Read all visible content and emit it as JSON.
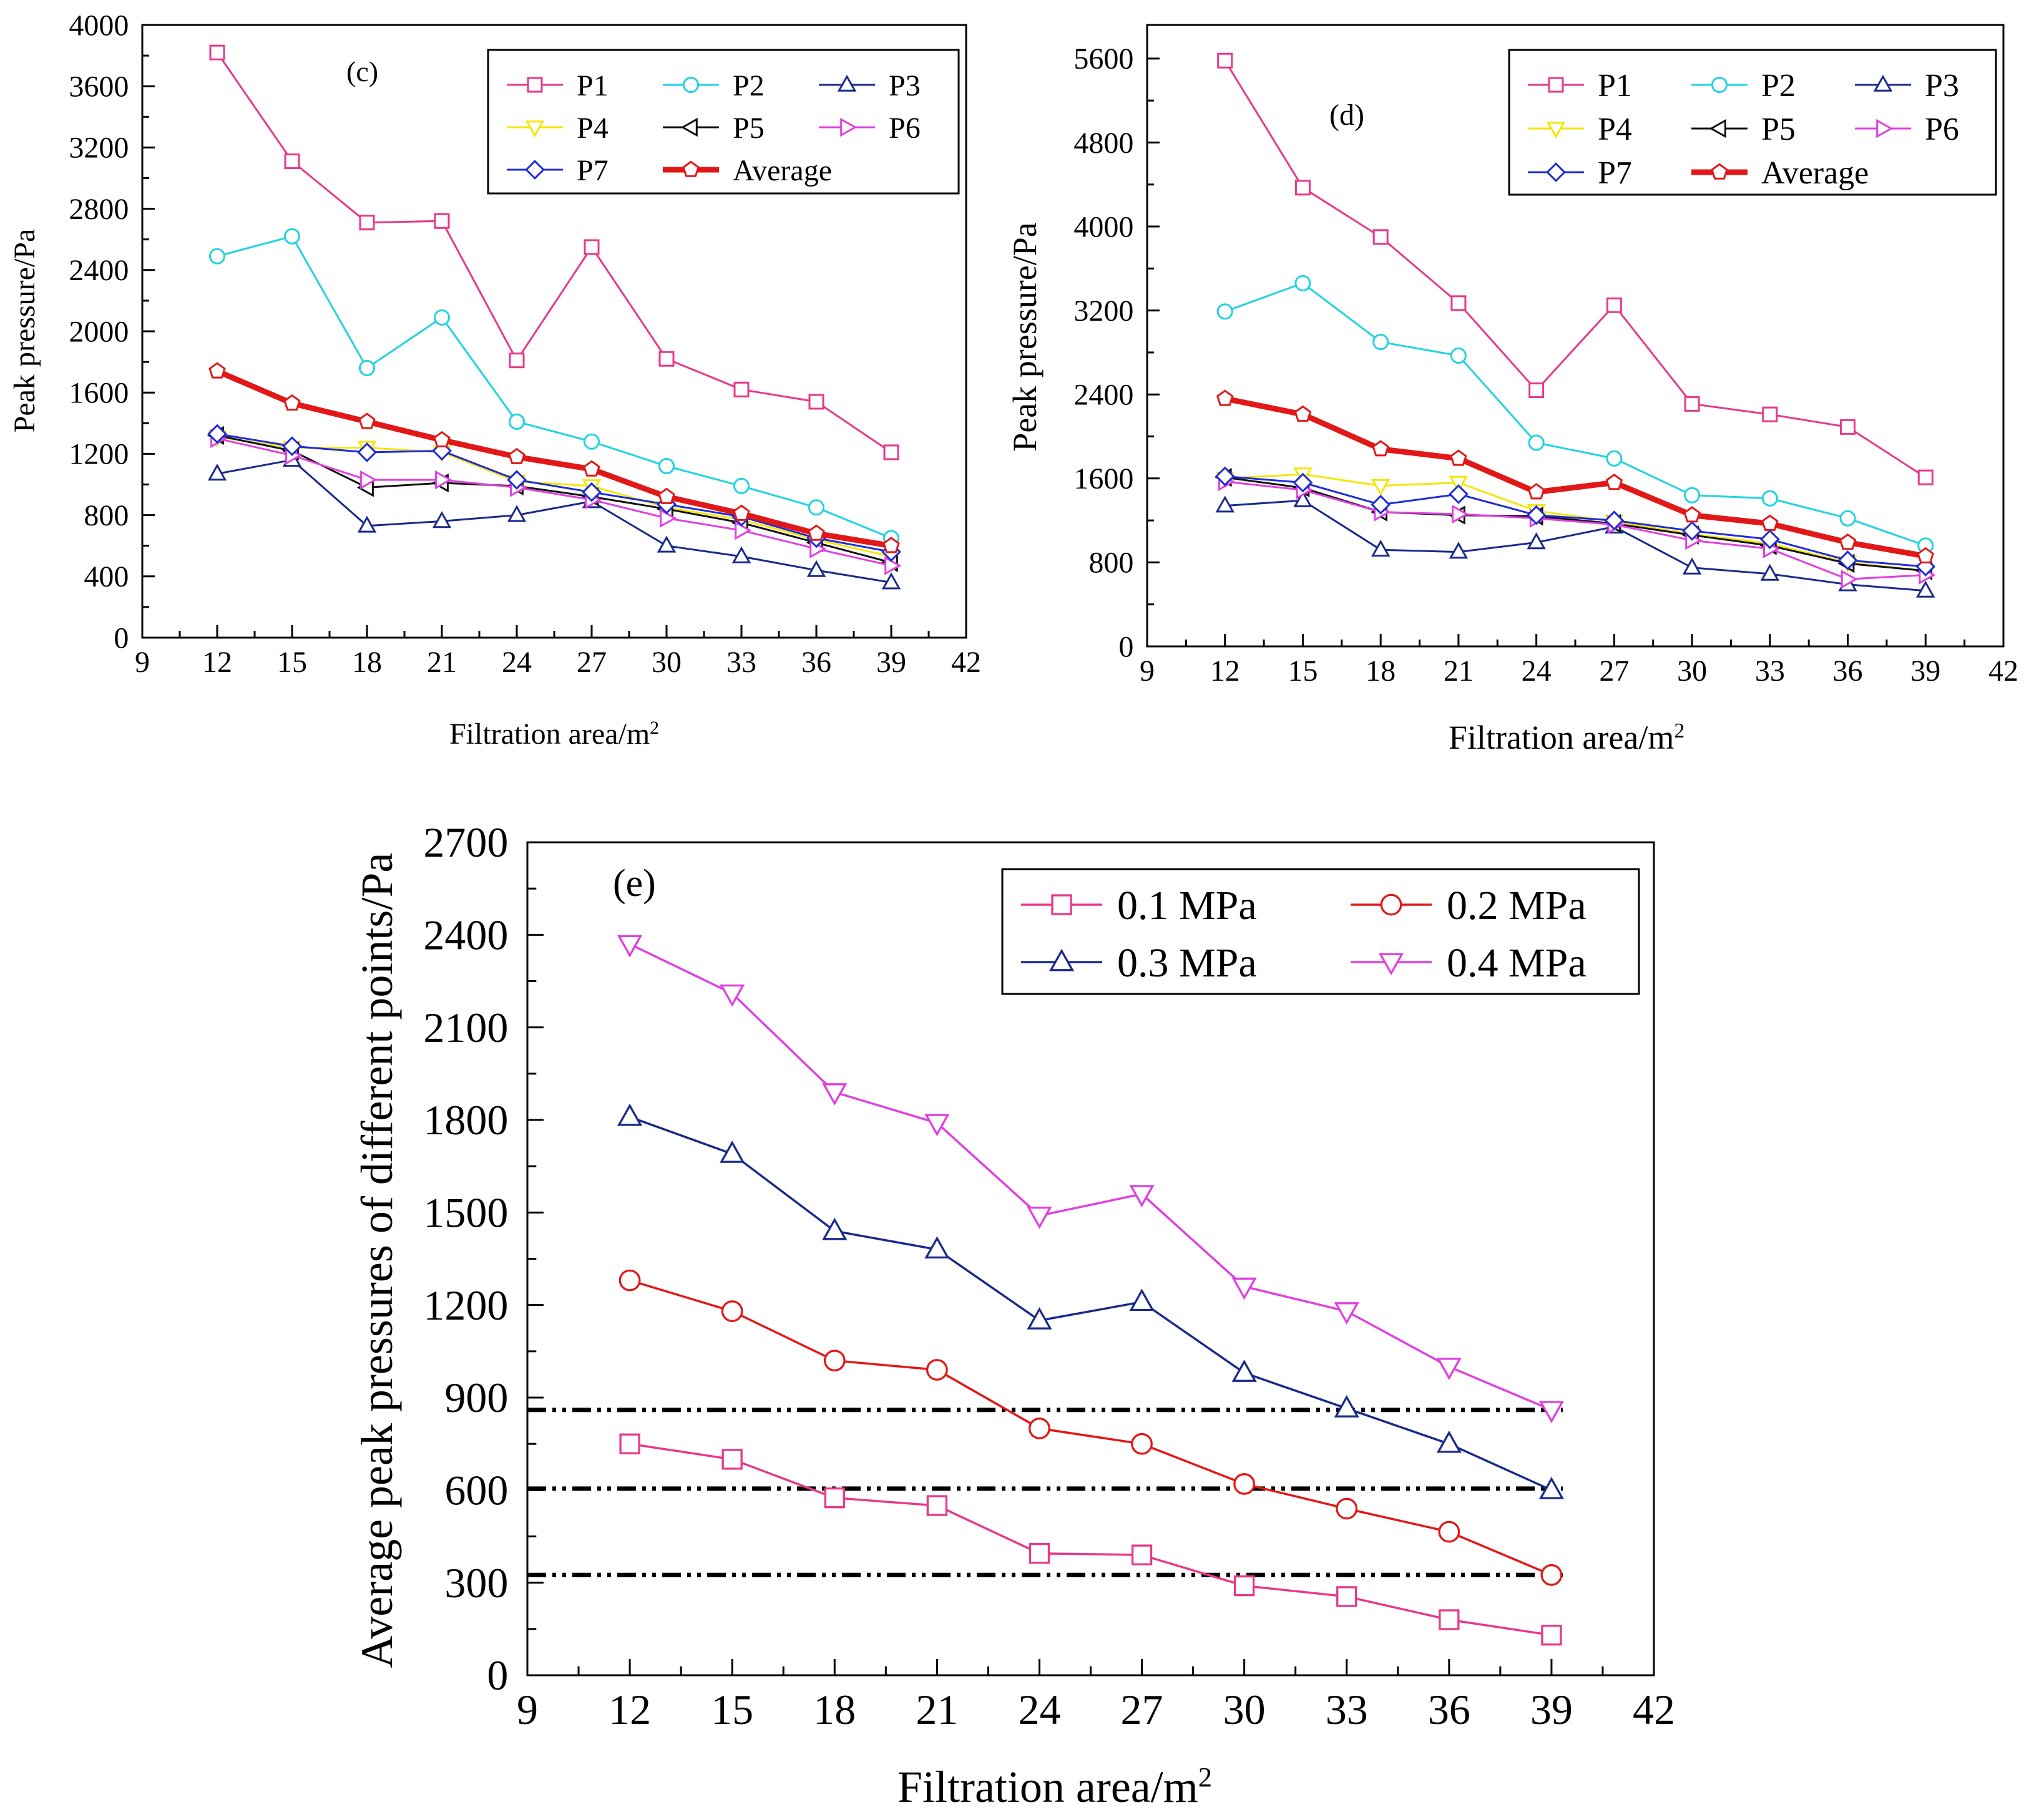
{
  "figure": {
    "panels": [
      "(c)",
      "(d)",
      "(e)"
    ]
  },
  "chart_data": [
    {
      "type": "line",
      "panel_label": "(c)",
      "xlabel": "Filtration area/m",
      "xlabel_sup": "2",
      "ylabel": "Peak pressure/Pa",
      "xlim": [
        9,
        42
      ],
      "ylim": [
        0,
        4000
      ],
      "xticks": [
        9,
        12,
        15,
        18,
        21,
        24,
        27,
        30,
        33,
        36,
        39,
        42
      ],
      "yticks": [
        0,
        400,
        800,
        1200,
        1600,
        2000,
        2400,
        2800,
        3200,
        3600,
        4000
      ],
      "legend_position": "top-right",
      "legend_columns": 3,
      "x": [
        12,
        15,
        18,
        21,
        24,
        27,
        30,
        33,
        36,
        39
      ],
      "series": [
        {
          "name": "P1",
          "color": "#E8388A",
          "marker": "square",
          "values": [
            3820,
            3110,
            2710,
            2720,
            1810,
            2550,
            1820,
            1620,
            1540,
            1210
          ]
        },
        {
          "name": "P2",
          "color": "#22D3E0",
          "marker": "circle",
          "values": [
            2490,
            2620,
            1760,
            2090,
            1410,
            1280,
            1120,
            990,
            850,
            650
          ]
        },
        {
          "name": "P3",
          "color": "#1A2A8A",
          "marker": "triangle-up",
          "values": [
            1070,
            1160,
            730,
            760,
            800,
            890,
            600,
            530,
            440,
            360
          ]
        },
        {
          "name": "P4",
          "color": "#F5E60A",
          "marker": "triangle-down",
          "values": [
            1310,
            1240,
            1240,
            1210,
            1020,
            990,
            850,
            770,
            640,
            530
          ]
        },
        {
          "name": "P5",
          "color": "#111111",
          "marker": "triangle-left",
          "values": [
            1320,
            1220,
            980,
            1010,
            990,
            920,
            840,
            750,
            620,
            490
          ]
        },
        {
          "name": "P6",
          "color": "#E040E0",
          "marker": "triangle-right",
          "values": [
            1300,
            1190,
            1030,
            1030,
            980,
            900,
            780,
            700,
            580,
            470
          ]
        },
        {
          "name": "P7",
          "color": "#1E2BD8",
          "marker": "diamond",
          "values": [
            1330,
            1250,
            1210,
            1220,
            1030,
            950,
            870,
            790,
            650,
            560
          ]
        },
        {
          "name": "Average",
          "color": "#E21818",
          "marker": "pentagon",
          "thick": true,
          "values": [
            1740,
            1530,
            1410,
            1290,
            1180,
            1100,
            920,
            810,
            680,
            600
          ]
        }
      ]
    },
    {
      "type": "line",
      "panel_label": "(d)",
      "xlabel": "Filtration area/m",
      "xlabel_sup": "2",
      "ylabel": "Peak pressure/Pa",
      "xlim": [
        9,
        42
      ],
      "ylim": [
        0,
        5920
      ],
      "xticks": [
        9,
        12,
        15,
        18,
        21,
        24,
        27,
        30,
        33,
        36,
        39,
        42
      ],
      "yticks": [
        0,
        800,
        1600,
        2400,
        3200,
        4000,
        4800,
        5600
      ],
      "legend_position": "top-right",
      "legend_columns": 3,
      "x": [
        12,
        15,
        18,
        21,
        24,
        27,
        30,
        33,
        36,
        39
      ],
      "series": [
        {
          "name": "P1",
          "color": "#E8388A",
          "marker": "square",
          "values": [
            5580,
            4370,
            3900,
            3270,
            2440,
            3250,
            2310,
            2210,
            2090,
            1610
          ]
        },
        {
          "name": "P2",
          "color": "#22D3E0",
          "marker": "circle",
          "values": [
            3190,
            3460,
            2900,
            2770,
            1940,
            1790,
            1440,
            1410,
            1220,
            960
          ]
        },
        {
          "name": "P3",
          "color": "#1A2A8A",
          "marker": "triangle-up",
          "values": [
            1340,
            1390,
            920,
            900,
            990,
            1140,
            750,
            690,
            590,
            530
          ]
        },
        {
          "name": "P4",
          "color": "#F5E60A",
          "marker": "triangle-down",
          "values": [
            1600,
            1640,
            1530,
            1560,
            1290,
            1190,
            1070,
            980,
            800,
            720
          ]
        },
        {
          "name": "P5",
          "color": "#111111",
          "marker": "triangle-left",
          "values": [
            1610,
            1510,
            1280,
            1250,
            1240,
            1170,
            1060,
            960,
            790,
            720
          ]
        },
        {
          "name": "P6",
          "color": "#E040E0",
          "marker": "triangle-right",
          "values": [
            1570,
            1490,
            1280,
            1260,
            1220,
            1160,
            1010,
            930,
            640,
            680
          ]
        },
        {
          "name": "P7",
          "color": "#1E2BD8",
          "marker": "diamond",
          "values": [
            1620,
            1560,
            1350,
            1450,
            1250,
            1200,
            1100,
            1020,
            820,
            760
          ]
        },
        {
          "name": "Average",
          "color": "#E21818",
          "marker": "pentagon",
          "thick": true,
          "values": [
            2360,
            2210,
            1880,
            1790,
            1470,
            1560,
            1250,
            1170,
            990,
            860
          ]
        }
      ]
    },
    {
      "type": "line",
      "panel_label": "(e)",
      "xlabel": "Filtration area/m",
      "xlabel_sup": "2",
      "ylabel": "Average peak pressures of different points/Pa",
      "xlim": [
        9,
        42
      ],
      "ylim": [
        0,
        2700
      ],
      "xticks": [
        9,
        12,
        15,
        18,
        21,
        24,
        27,
        30,
        33,
        36,
        39,
        42
      ],
      "yticks": [
        0,
        300,
        600,
        900,
        1200,
        1500,
        1800,
        2100,
        2400,
        2700
      ],
      "legend_position": "top-right",
      "legend_columns": 2,
      "x": [
        12,
        15,
        18,
        21,
        24,
        27,
        30,
        33,
        36,
        39
      ],
      "series": [
        {
          "name": "0.1 MPa",
          "color": "#E8388A",
          "marker": "square",
          "values": [
            750,
            700,
            575,
            550,
            395,
            390,
            290,
            255,
            180,
            130
          ]
        },
        {
          "name": "0.2 MPa",
          "color": "#E21818",
          "marker": "circle",
          "values": [
            1280,
            1180,
            1020,
            990,
            800,
            750,
            620,
            540,
            465,
            325
          ]
        },
        {
          "name": "0.3 MPa",
          "color": "#1A2A8A",
          "marker": "triangle-up",
          "values": [
            1810,
            1690,
            1440,
            1380,
            1150,
            1210,
            980,
            865,
            750,
            600
          ]
        },
        {
          "name": "0.4 MPa",
          "color": "#E040E0",
          "marker": "triangle-down",
          "values": [
            2370,
            2210,
            1890,
            1790,
            1490,
            1560,
            1260,
            1180,
            1000,
            860
          ]
        }
      ],
      "reference_lines": [
        {
          "y": 860,
          "x_from": 9,
          "x_to": 39
        },
        {
          "y": 605,
          "x_from": 9,
          "x_to": 39
        },
        {
          "y": 325,
          "x_from": 9,
          "x_to": 39
        }
      ]
    }
  ]
}
